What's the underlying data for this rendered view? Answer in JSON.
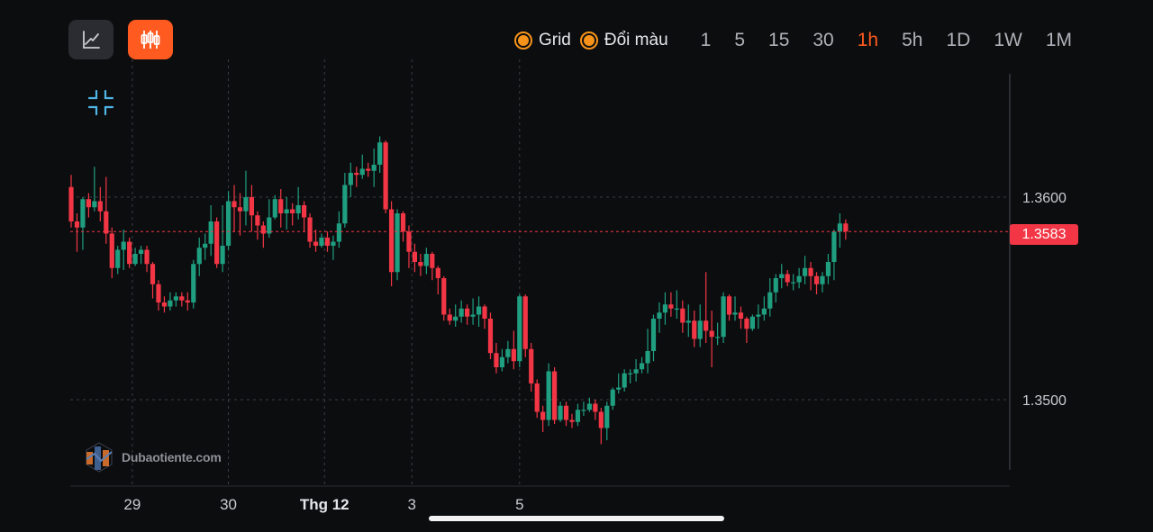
{
  "toolbar": {
    "line_chart_button": "line-chart-icon",
    "candle_chart_button": "candlestick-icon",
    "grid_label": "Grid",
    "color_label": "Đổi màu",
    "timeframes": [
      "1",
      "5",
      "15",
      "30",
      "1h",
      "5h",
      "1D",
      "1W",
      "1M"
    ],
    "active_timeframe": "1h"
  },
  "colors": {
    "accent": "#ff5a1f",
    "radio": "#f7931a",
    "up": "#1f9e80",
    "down": "#f23645",
    "price_line": "#f23645"
  },
  "watermark": {
    "text": "Dubaotiente.com"
  },
  "price": {
    "current": "1.3583"
  },
  "chart_data": {
    "type": "candlestick",
    "interval": "1h",
    "xlabel": "",
    "ylabel": "",
    "y_ticks": [
      "1.3600",
      "1.3500"
    ],
    "x_ticks": [
      {
        "label": "29",
        "index": 10.5
      },
      {
        "label": "30",
        "index": 27
      },
      {
        "label": "Thg 12",
        "index": 43.5,
        "bold": true
      },
      {
        "label": "3",
        "index": 58.5
      },
      {
        "label": "5",
        "index": 77
      }
    ],
    "current_price": 1.3583,
    "grid": true,
    "candles": [
      [
        1.3605,
        1.3588,
        1.3611,
        1.3585
      ],
      [
        1.3588,
        1.3585,
        1.3592,
        1.3573
      ],
      [
        1.3585,
        1.3599,
        1.36,
        1.3574
      ],
      [
        1.3599,
        1.3595,
        1.3602,
        1.359
      ],
      [
        1.3595,
        1.3598,
        1.3615,
        1.3593
      ],
      [
        1.3598,
        1.3593,
        1.3605,
        1.3588
      ],
      [
        1.3593,
        1.3582,
        1.361,
        1.3577
      ],
      [
        1.3582,
        1.3565,
        1.3585,
        1.356
      ],
      [
        1.3565,
        1.3574,
        1.3576,
        1.3562
      ],
      [
        1.3574,
        1.3578,
        1.3584,
        1.3564
      ],
      [
        1.3578,
        1.3567,
        1.358,
        1.3565
      ],
      [
        1.3567,
        1.3572,
        1.3575,
        1.3566
      ],
      [
        1.3572,
        1.3574,
        1.3576,
        1.3567
      ],
      [
        1.3574,
        1.3567,
        1.3576,
        1.3563
      ],
      [
        1.3567,
        1.3557,
        1.3568,
        1.355
      ],
      [
        1.3557,
        1.3548,
        1.3559,
        1.3544
      ],
      [
        1.3548,
        1.3546,
        1.3551,
        1.3543
      ],
      [
        1.3546,
        1.3549,
        1.3553,
        1.3544
      ],
      [
        1.3549,
        1.3551,
        1.3553,
        1.3546
      ],
      [
        1.3551,
        1.3549,
        1.3553,
        1.3546
      ],
      [
        1.3549,
        1.3548,
        1.3553,
        1.3544
      ],
      [
        1.3548,
        1.3567,
        1.3569,
        1.3545
      ],
      [
        1.3567,
        1.3575,
        1.358,
        1.3561
      ],
      [
        1.3575,
        1.3577,
        1.3582,
        1.3569
      ],
      [
        1.3577,
        1.3588,
        1.3596,
        1.3571
      ],
      [
        1.3588,
        1.3567,
        1.359,
        1.3565
      ],
      [
        1.3567,
        1.3576,
        1.3596,
        1.3563
      ],
      [
        1.3576,
        1.3598,
        1.3603,
        1.3574
      ],
      [
        1.3598,
        1.3595,
        1.3606,
        1.3583
      ],
      [
        1.3595,
        1.3593,
        1.3602,
        1.3581
      ],
      [
        1.3593,
        1.36,
        1.3613,
        1.3586
      ],
      [
        1.36,
        1.3591,
        1.3606,
        1.3583
      ],
      [
        1.3591,
        1.3586,
        1.3593,
        1.3579
      ],
      [
        1.3586,
        1.3582,
        1.3588,
        1.3575
      ],
      [
        1.3582,
        1.359,
        1.3599,
        1.358
      ],
      [
        1.359,
        1.3599,
        1.3601,
        1.3589
      ],
      [
        1.3599,
        1.3592,
        1.3604,
        1.3585
      ],
      [
        1.3592,
        1.3594,
        1.36,
        1.3584
      ],
      [
        1.3594,
        1.3592,
        1.3597,
        1.3586
      ],
      [
        1.3592,
        1.3596,
        1.3605,
        1.3589
      ],
      [
        1.3596,
        1.359,
        1.3598,
        1.3583
      ],
      [
        1.359,
        1.3578,
        1.3592,
        1.3575
      ],
      [
        1.3578,
        1.3576,
        1.3584,
        1.3573
      ],
      [
        1.3576,
        1.358,
        1.3582,
        1.3575
      ],
      [
        1.358,
        1.3576,
        1.3583,
        1.3573
      ],
      [
        1.3576,
        1.3578,
        1.3581,
        1.3569
      ],
      [
        1.3578,
        1.3587,
        1.3593,
        1.3575
      ],
      [
        1.3587,
        1.3606,
        1.3612,
        1.3585
      ],
      [
        1.3606,
        1.3612,
        1.3617,
        1.36
      ],
      [
        1.3612,
        1.3611,
        1.3615,
        1.3605
      ],
      [
        1.3611,
        1.3614,
        1.3621,
        1.3609
      ],
      [
        1.3614,
        1.3613,
        1.3617,
        1.361
      ],
      [
        1.3613,
        1.3616,
        1.3624,
        1.3605
      ],
      [
        1.3616,
        1.3627,
        1.363,
        1.3612
      ],
      [
        1.3627,
        1.3594,
        1.3628,
        1.3592
      ],
      [
        1.3594,
        1.3563,
        1.3598,
        1.3556
      ],
      [
        1.3563,
        1.3592,
        1.3594,
        1.3559
      ],
      [
        1.3592,
        1.3583,
        1.3593,
        1.3578
      ],
      [
        1.3583,
        1.3573,
        1.3586,
        1.3565
      ],
      [
        1.3573,
        1.3568,
        1.3577,
        1.3563
      ],
      [
        1.3568,
        1.3566,
        1.3572,
        1.3561
      ],
      [
        1.3566,
        1.3572,
        1.3575,
        1.3562
      ],
      [
        1.3572,
        1.3565,
        1.3573,
        1.3559
      ],
      [
        1.3565,
        1.356,
        1.3566,
        1.3552
      ],
      [
        1.356,
        1.3542,
        1.3561,
        1.3539
      ],
      [
        1.3542,
        1.3539,
        1.3545,
        1.3537
      ],
      [
        1.3539,
        1.3541,
        1.3547,
        1.3536
      ],
      [
        1.3541,
        1.3545,
        1.3549,
        1.3538
      ],
      [
        1.3545,
        1.3541,
        1.3547,
        1.3537
      ],
      [
        1.3541,
        1.3542,
        1.355,
        1.3537
      ],
      [
        1.3542,
        1.3546,
        1.3551,
        1.3536
      ],
      [
        1.3546,
        1.354,
        1.3547,
        1.3535
      ],
      [
        1.354,
        1.3523,
        1.3543,
        1.352
      ],
      [
        1.3523,
        1.3516,
        1.3528,
        1.3513
      ],
      [
        1.3516,
        1.3521,
        1.3525,
        1.3514
      ],
      [
        1.3521,
        1.3525,
        1.3529,
        1.3518
      ],
      [
        1.3525,
        1.3519,
        1.3534,
        1.3515
      ],
      [
        1.3519,
        1.3551,
        1.3552,
        1.3516
      ],
      [
        1.3551,
        1.3525,
        1.3552,
        1.3521
      ],
      [
        1.3525,
        1.3508,
        1.3528,
        1.3504
      ],
      [
        1.3508,
        1.3494,
        1.351,
        1.3491
      ],
      [
        1.3494,
        1.349,
        1.3497,
        1.3484
      ],
      [
        1.349,
        1.3514,
        1.3518,
        1.3487
      ],
      [
        1.3514,
        1.349,
        1.3516,
        1.3488
      ],
      [
        1.349,
        1.3497,
        1.3499,
        1.3489
      ],
      [
        1.3497,
        1.349,
        1.3499,
        1.3487
      ],
      [
        1.349,
        1.3489,
        1.3493,
        1.3486
      ],
      [
        1.3489,
        1.3495,
        1.3498,
        1.3487
      ],
      [
        1.3495,
        1.3495,
        1.3499,
        1.3492
      ],
      [
        1.3495,
        1.3498,
        1.3501,
        1.3494
      ],
      [
        1.3498,
        1.3494,
        1.35,
        1.349
      ],
      [
        1.3494,
        1.3486,
        1.3496,
        1.3478
      ],
      [
        1.3486,
        1.3497,
        1.3499,
        1.348
      ],
      [
        1.3497,
        1.3505,
        1.3506,
        1.3495
      ],
      [
        1.3505,
        1.3506,
        1.3513,
        1.3503
      ],
      [
        1.3506,
        1.3513,
        1.3515,
        1.3504
      ],
      [
        1.3513,
        1.3513,
        1.3515,
        1.3508
      ],
      [
        1.3513,
        1.3515,
        1.352,
        1.3509
      ],
      [
        1.3515,
        1.3518,
        1.3521,
        1.3513
      ],
      [
        1.3518,
        1.3524,
        1.3535,
        1.3513
      ],
      [
        1.3524,
        1.354,
        1.3542,
        1.3519
      ],
      [
        1.354,
        1.3543,
        1.3548,
        1.3533
      ],
      [
        1.3543,
        1.3547,
        1.3553,
        1.3537
      ],
      [
        1.3547,
        1.3545,
        1.3553,
        1.3541
      ],
      [
        1.3545,
        1.3545,
        1.3554,
        1.354
      ],
      [
        1.3545,
        1.3538,
        1.3549,
        1.3533
      ],
      [
        1.3538,
        1.3539,
        1.3547,
        1.3531
      ],
      [
        1.3539,
        1.353,
        1.3544,
        1.3526
      ],
      [
        1.353,
        1.3539,
        1.3547,
        1.3526
      ],
      [
        1.3539,
        1.3534,
        1.3563,
        1.3528
      ],
      [
        1.3534,
        1.3531,
        1.3544,
        1.3516
      ],
      [
        1.3531,
        1.3531,
        1.3538,
        1.3527
      ],
      [
        1.3531,
        1.3551,
        1.3553,
        1.3528
      ],
      [
        1.3551,
        1.3542,
        1.3552,
        1.3539
      ],
      [
        1.3542,
        1.3543,
        1.3551,
        1.3539
      ],
      [
        1.3543,
        1.354,
        1.3546,
        1.3535
      ],
      [
        1.354,
        1.3535,
        1.3541,
        1.3528
      ],
      [
        1.3535,
        1.3541,
        1.3542,
        1.3534
      ],
      [
        1.3541,
        1.3542,
        1.3547,
        1.3535
      ],
      [
        1.3542,
        1.3545,
        1.3551,
        1.3539
      ],
      [
        1.3545,
        1.3553,
        1.356,
        1.3541
      ],
      [
        1.3553,
        1.356,
        1.3562,
        1.3548
      ],
      [
        1.356,
        1.3562,
        1.3567,
        1.3555
      ],
      [
        1.3562,
        1.3558,
        1.3564,
        1.3556
      ],
      [
        1.3558,
        1.3558,
        1.3562,
        1.3554
      ],
      [
        1.3558,
        1.3561,
        1.3565,
        1.3555
      ],
      [
        1.3561,
        1.3565,
        1.3571,
        1.3557
      ],
      [
        1.3565,
        1.3561,
        1.3568,
        1.3554
      ],
      [
        1.3561,
        1.3557,
        1.3563,
        1.3552
      ],
      [
        1.3557,
        1.3561,
        1.3563,
        1.3553
      ],
      [
        1.3561,
        1.3568,
        1.3572,
        1.3557
      ],
      [
        1.3568,
        1.3583,
        1.3584,
        1.3559
      ],
      [
        1.3583,
        1.3587,
        1.3592,
        1.3575
      ],
      [
        1.3587,
        1.3583,
        1.3589,
        1.3579
      ]
    ]
  }
}
